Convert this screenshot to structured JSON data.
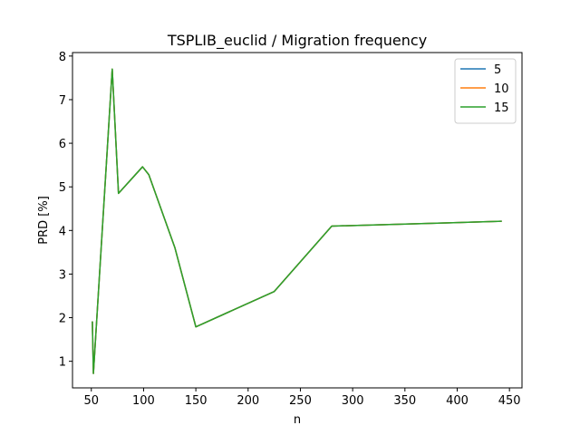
{
  "chart_data": {
    "type": "line",
    "title": "TSPLIB_euclid / Migration frequency",
    "xlabel": "n",
    "ylabel": "PRD [%]",
    "xlim": [
      32,
      462
    ],
    "ylim": [
      0.39,
      8.08
    ],
    "xticks": [
      50,
      100,
      150,
      200,
      250,
      300,
      350,
      400,
      450
    ],
    "yticks": [
      1,
      2,
      3,
      4,
      5,
      6,
      7,
      8
    ],
    "grid": false,
    "legend_position": "top-right",
    "x": [
      51,
      52,
      70,
      76,
      99,
      105,
      130,
      150,
      225,
      280,
      442
    ],
    "series": [
      {
        "name": "5",
        "color": "#1f77b4",
        "values": [
          1.9,
          0.72,
          7.7,
          4.85,
          5.46,
          5.28,
          3.6,
          1.79,
          2.6,
          4.1,
          4.21
        ]
      },
      {
        "name": "10",
        "color": "#ff7f0e",
        "values": [
          1.9,
          0.72,
          7.7,
          4.85,
          5.46,
          5.28,
          3.6,
          1.79,
          2.6,
          4.1,
          4.21
        ]
      },
      {
        "name": "15",
        "color": "#2ca02c",
        "values": [
          1.9,
          0.72,
          7.7,
          4.85,
          5.46,
          5.28,
          3.6,
          1.79,
          2.6,
          4.1,
          4.21
        ]
      }
    ]
  }
}
